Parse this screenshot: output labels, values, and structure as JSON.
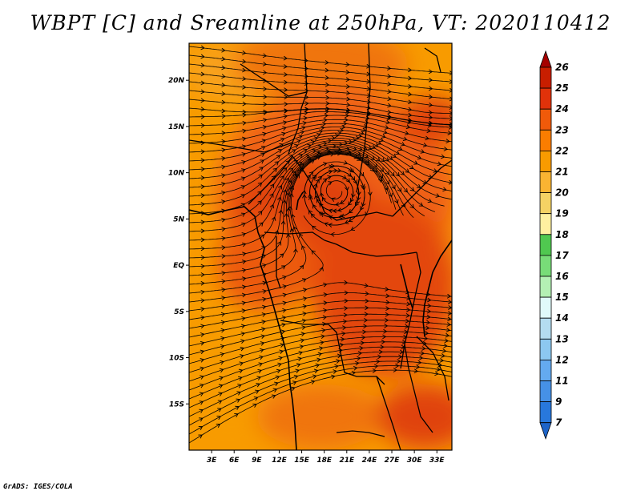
{
  "title": "WBPT [C] and Sreamline at 250hPa, VT: 2020110412",
  "credit": "GrADS: IGES/COLA",
  "map": {
    "variable": "Wet-bulb potential temperature",
    "level": "250hPa",
    "valid_time": "2020110412",
    "lon_range": [
      0,
      35
    ],
    "lat_range": [
      -20,
      24
    ],
    "x_tick_labels": [
      "3E",
      "6E",
      "9E",
      "12E",
      "15E",
      "18E",
      "21E",
      "24E",
      "27E",
      "30E",
      "33E"
    ],
    "x_tick_values": [
      3,
      6,
      9,
      12,
      15,
      18,
      21,
      24,
      27,
      30,
      33
    ],
    "y_tick_labels": [
      "20N",
      "15N",
      "10N",
      "5N",
      "EQ",
      "5S",
      "10S",
      "15S"
    ],
    "y_tick_values": [
      20,
      15,
      10,
      5,
      0,
      -5,
      -10,
      -15
    ],
    "vortex_center": {
      "lon": 19.5,
      "lat": 8
    }
  },
  "colorbar": {
    "labels": [
      "26",
      "25",
      "24",
      "23",
      "22",
      "21",
      "20",
      "19",
      "18",
      "17",
      "16",
      "15",
      "14",
      "13",
      "12",
      "11",
      "9",
      "7"
    ],
    "colors": [
      "#a50000",
      "#c81e00",
      "#e0320a",
      "#f05a0a",
      "#fa7d00",
      "#f89b00",
      "#fab432",
      "#f5d264",
      "#fff0a0",
      "#50c850",
      "#78dc78",
      "#b4f0b4",
      "#e0fafa",
      "#b4dcf0",
      "#8cc8f0",
      "#64aaf0",
      "#4691e6",
      "#2878dc",
      "#1e64c8"
    ]
  }
}
